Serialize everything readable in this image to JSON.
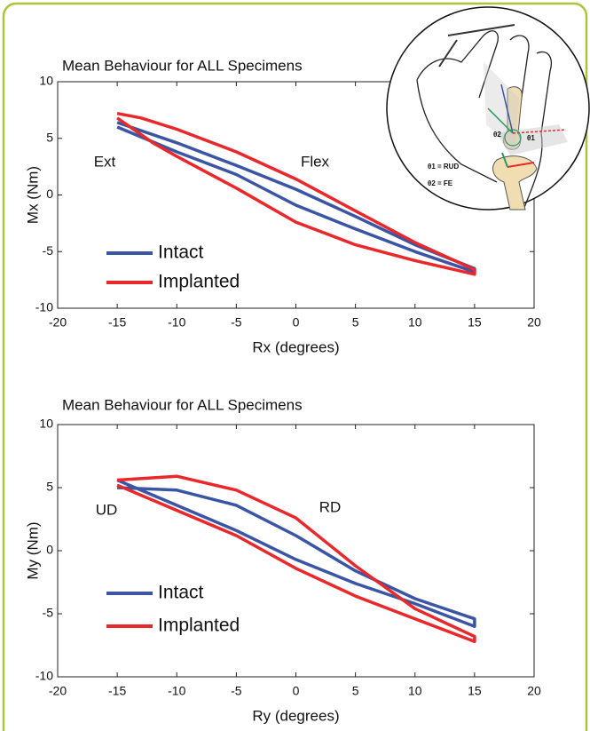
{
  "chart_data": [
    {
      "type": "line",
      "title": "Mean Behaviour for ALL Specimens",
      "xlabel": "Rx (degrees)",
      "ylabel": "Mx (Nm)",
      "xlim": [
        -20,
        20
      ],
      "xticks": [
        -20,
        -15,
        -10,
        -5,
        0,
        5,
        10,
        15,
        20
      ],
      "ylim": [
        -10,
        10
      ],
      "yticks": [
        -10,
        -5,
        0,
        5,
        10
      ],
      "annotations": [
        "Ext",
        "Flex"
      ],
      "legend": "lower left",
      "series": [
        {
          "name": "Intact",
          "color": "#3a55a4",
          "x": [
            -15,
            -10,
            -5,
            0,
            5,
            10,
            15,
            15,
            10,
            5,
            0,
            -5,
            -10,
            -15
          ],
          "values": [
            6,
            3.8,
            1.8,
            -0.9,
            -3.0,
            -5.0,
            -6.8,
            -6.5,
            -4.4,
            -1.9,
            0.5,
            2.6,
            4.6,
            6.4
          ]
        },
        {
          "name": "Implanted",
          "color": "#e8282b",
          "x": [
            -15,
            -12,
            -10,
            -5,
            0,
            5,
            10,
            15,
            15,
            10,
            5,
            0,
            -5,
            -10,
            -13,
            -15
          ],
          "values": [
            6.8,
            4.6,
            3.4,
            0.6,
            -2.4,
            -4.4,
            -5.8,
            -7,
            -6.6,
            -4.2,
            -1.4,
            1.4,
            3.8,
            5.8,
            6.8,
            7.2
          ]
        }
      ]
    },
    {
      "type": "line",
      "title": "Mean Behaviour for ALL Specimens",
      "xlabel": "Ry (degrees)",
      "ylabel": "My (Nm)",
      "xlim": [
        -20,
        20
      ],
      "xticks": [
        -20,
        -15,
        -10,
        -5,
        0,
        5,
        10,
        15,
        20
      ],
      "ylim": [
        -10,
        10
      ],
      "yticks": [
        -10,
        -5,
        0,
        5,
        10
      ],
      "annotations": [
        "UD",
        "RD"
      ],
      "legend": "lower left",
      "series": [
        {
          "name": "Intact",
          "color": "#3a55a4",
          "x": [
            -15,
            -10,
            -5,
            0,
            5,
            10,
            15,
            15,
            10,
            5,
            0,
            -5,
            -10,
            -15
          ],
          "values": [
            5.6,
            3.6,
            1.6,
            -0.7,
            -2.6,
            -4.2,
            -6.0,
            -5.4,
            -3.8,
            -1.6,
            1.2,
            3.6,
            4.8,
            5.0
          ]
        },
        {
          "name": "Implanted",
          "color": "#e8282b",
          "x": [
            -15,
            -10,
            -5,
            0,
            5,
            10,
            15,
            15,
            10,
            5,
            0,
            -5,
            -10,
            -15
          ],
          "values": [
            5.2,
            3.2,
            1.2,
            -1.4,
            -3.6,
            -5.4,
            -7.2,
            -6.8,
            -4.6,
            -1.2,
            2.6,
            4.8,
            5.9,
            5.6
          ]
        }
      ]
    }
  ],
  "inset": {
    "labels": [
      "θ1 = RUD",
      "θ2 = FE",
      "θ2",
      "θ1"
    ]
  }
}
